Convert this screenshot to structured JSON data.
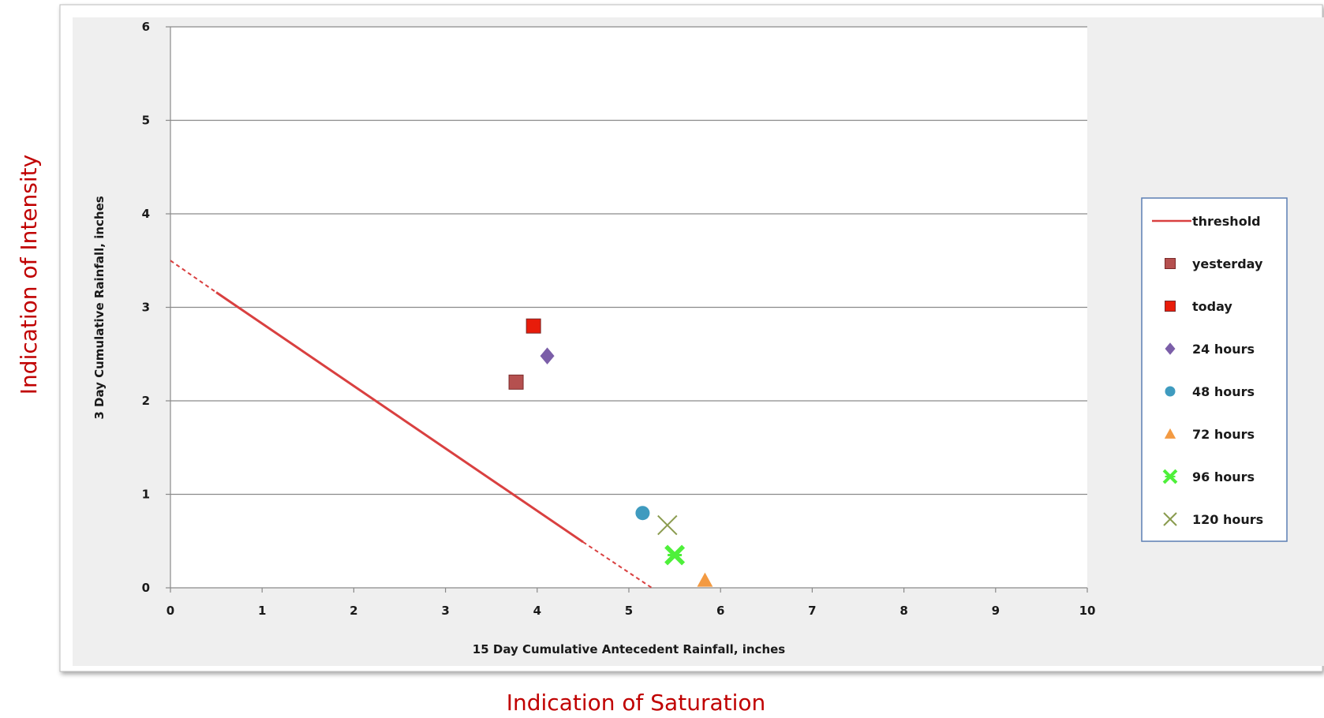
{
  "chart_data": {
    "type": "scatter",
    "title": "",
    "xlabel": "15 Day Cumulative Antecedent Rainfall, inches",
    "ylabel": "3 Day Cumulative Rainfall, inches",
    "xlim": [
      0,
      10
    ],
    "ylim": [
      0,
      6
    ],
    "x_ticks": [
      "0",
      "1",
      "2",
      "3",
      "4",
      "5",
      "6",
      "7",
      "8",
      "9",
      "10"
    ],
    "y_ticks": [
      "0",
      "1",
      "2",
      "3",
      "4",
      "5",
      "6"
    ],
    "grid": "horizontal",
    "legend_position": "right",
    "threshold": {
      "name": "threshold",
      "color": "#d94040",
      "solid": [
        [
          0.5,
          3.16
        ],
        [
          4.5,
          0.49
        ]
      ],
      "dashed": [
        [
          [
            0,
            3.5
          ],
          [
            0.5,
            3.16
          ]
        ],
        [
          [
            4.5,
            0.49
          ],
          [
            5.25,
            0.0
          ]
        ]
      ]
    },
    "series": [
      {
        "name": "yesterday",
        "marker": "square",
        "color": "#b5504f",
        "x": 3.77,
        "y": 2.2
      },
      {
        "name": "today",
        "marker": "square",
        "color": "#e81c0a",
        "x": 3.96,
        "y": 2.8
      },
      {
        "name": "24 hours",
        "marker": "diamond",
        "color": "#7b5ea8",
        "x": 4.11,
        "y": 2.48
      },
      {
        "name": "48 hours",
        "marker": "circle",
        "color": "#3f9bbf",
        "x": 5.15,
        "y": 0.8
      },
      {
        "name": "72 hours",
        "marker": "triangle",
        "color": "#f39a42",
        "x": 5.83,
        "y": 0.08
      },
      {
        "name": "96 hours",
        "marker": "star-x",
        "color": "#4ef03a",
        "x": 5.5,
        "y": 0.35
      },
      {
        "name": "120 hours",
        "marker": "x",
        "color": "#8a9b4e",
        "x": 5.42,
        "y": 0.67
      }
    ]
  },
  "annotations": {
    "left": "Indication of Intensity",
    "bottom": "Indication of Saturation"
  }
}
